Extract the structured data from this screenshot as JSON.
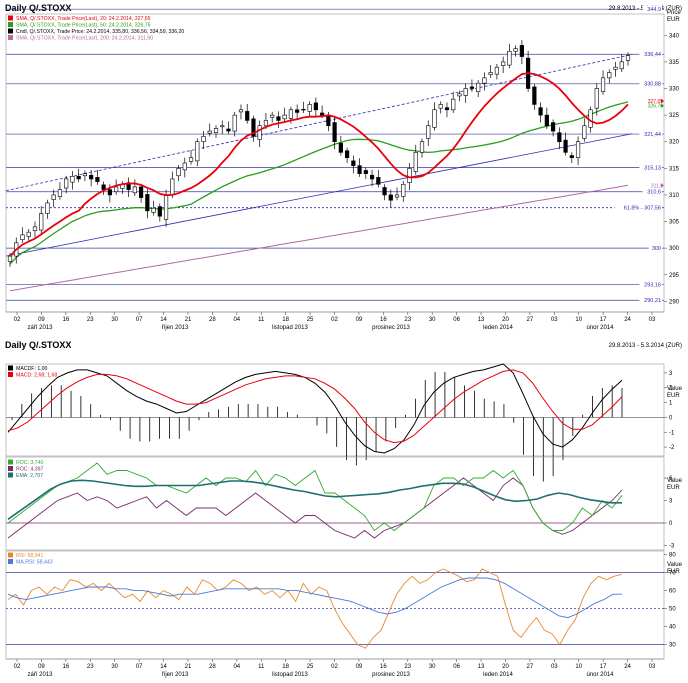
{
  "header": {
    "title": "Daily Q/.STOXX",
    "date_range": "29.8.2013 - 5.3.2014 (ZUR)",
    "title2": "Daily Q/.STOXX",
    "date_range2": "29.8.2013 - 5.3.2014 (ZUR)"
  },
  "colors": {
    "price": "#000000",
    "sma20": "#e8000b",
    "sma50": "#2a9d1a",
    "sma200": "#b36aa0",
    "channel": "#2b2bb0",
    "macd": "#000000",
    "macd_signal": "#e8000b",
    "roc1": "#33aa33",
    "roc2": "#7a2a6a",
    "ema": "#1f6f6f",
    "rsi": "#e88a2a",
    "ma_rsi": "#4a7ad8"
  },
  "x_axis": {
    "day_labels": [
      "02",
      "09",
      "16",
      "23",
      "30",
      "07",
      "14",
      "21",
      "28",
      "04",
      "11",
      "18",
      "25",
      "02",
      "09",
      "16",
      "23",
      "30",
      "06",
      "13",
      "20",
      "27",
      "03",
      "10",
      "17",
      "24",
      "03"
    ],
    "month_labels": [
      "září 2013",
      "říjen 2013",
      "listopad 2013",
      "prosinec 2013",
      "leden 2014",
      "únor 2014"
    ]
  },
  "chart_data": [
    {
      "type": "line",
      "title": "Daily Q/.STOXX",
      "unit_label": "Price",
      "currency_label": "EUR",
      "ylim": [
        288,
        344
      ],
      "yticks": [
        290,
        295,
        300,
        305,
        310,
        315,
        320,
        325,
        330,
        335,
        340
      ],
      "legend": [
        {
          "text": "SMA, Q/.STOXX, Trade Price(Last), 20",
          "value": "24.2.2014, 327,65"
        },
        {
          "text": "SMA, Q/.STOXX, Trade Price(Last), 50",
          "value": "24.2.2014, 326,76"
        },
        {
          "text": "Cndl, Q/.STOXX, Trade Price",
          "value": "24.2.2014, 335,80, 336,56, 334,59, 336,20"
        },
        {
          "text": "SMA, Q/.STOXX, Trade Price(Last), 200",
          "value": "24.2.2014, 311,80"
        }
      ],
      "levels": [
        {
          "value": 344.9,
          "label": "344,9"
        },
        {
          "value": 336.44,
          "label": "336,44"
        },
        {
          "value": 330.88,
          "label": "330,88"
        },
        {
          "value": 321.44,
          "label": "321,44"
        },
        {
          "value": 315.13,
          "label": "315,13"
        },
        {
          "value": 310.6,
          "label": "310,6"
        },
        {
          "value": 307.6,
          "label": "61.8% - 307,56"
        },
        {
          "value": 300,
          "label": "300"
        },
        {
          "value": 293.16,
          "label": "293,16"
        },
        {
          "value": 290.21,
          "label": "290,21"
        }
      ],
      "sma_labels": {
        "sma20": "327,65",
        "sma50": "326,76",
        "sma200": "311,8"
      },
      "close": [
        298.5,
        301,
        302.5,
        303,
        304,
        306.5,
        308.5,
        310,
        311,
        313,
        313.5,
        313,
        314,
        313,
        312.5,
        311,
        310,
        311.5,
        312,
        311,
        311.5,
        309.5,
        307,
        307.5,
        306,
        310,
        313,
        315,
        316,
        317,
        320,
        321,
        322,
        322.5,
        323,
        322,
        325,
        326,
        324,
        321,
        323,
        324,
        325,
        324,
        325,
        326,
        325.5,
        326,
        327,
        326,
        325,
        323,
        320,
        318,
        317,
        315.5,
        314,
        314,
        313,
        312,
        310,
        309,
        310,
        312,
        315,
        318,
        320,
        323,
        326,
        327,
        326,
        328,
        329,
        330,
        330,
        331,
        332,
        333,
        334,
        335,
        337,
        337.5,
        336,
        330,
        327,
        325,
        323,
        322,
        320,
        318,
        317,
        320,
        323,
        326,
        330,
        332,
        333,
        334,
        335,
        336.2
      ]
    },
    {
      "type": "line",
      "title": "MACD",
      "unit_label": "Value",
      "currency_label": "EUR",
      "ylim": [
        -2.6,
        3.6
      ],
      "yticks": [
        -2,
        -1,
        0,
        1,
        2,
        3
      ],
      "legend": [
        {
          "text": "MACDF",
          "value": "1,00"
        },
        {
          "text": "MACD",
          "value": "2,68; 1,68"
        }
      ],
      "series": [
        {
          "name": "MACDF",
          "values": [
            -1,
            -0.2,
            0.6,
            1.4,
            2.1,
            2.7,
            3,
            3.2,
            3.2,
            3,
            2.8,
            2.3,
            1.8,
            1.4,
            1.1,
            0.9,
            0.6,
            0.3,
            0.4,
            0.8,
            1.2,
            1.6,
            2,
            2.4,
            2.7,
            2.9,
            3,
            3.1,
            3,
            2.9,
            2.7,
            2.3,
            1.7,
            0.8,
            -0.3,
            -1.2,
            -1.9,
            -2.3,
            -2.4,
            -2.1,
            -1.5,
            -0.5,
            0.8,
            1.7,
            2.3,
            2.7,
            2.9,
            3.1,
            3.2,
            3.4,
            3.6,
            3,
            1.6,
            0.1,
            -1.1,
            -1.8,
            -2,
            -1.5,
            -0.7,
            0.3,
            1.2,
            1.9,
            2.5
          ]
        },
        {
          "name": "MACD",
          "values": [
            -0.9,
            -0.7,
            -0.3,
            0.3,
            0.9,
            1.5,
            2,
            2.4,
            2.7,
            2.9,
            2.9,
            2.8,
            2.6,
            2.3,
            2,
            1.7,
            1.4,
            1.1,
            0.9,
            0.9,
            1,
            1.3,
            1.6,
            1.9,
            2.2,
            2.4,
            2.6,
            2.7,
            2.8,
            2.8,
            2.7,
            2.6,
            2.3,
            1.9,
            1.3,
            0.6,
            -0.3,
            -1,
            -1.5,
            -1.7,
            -1.6,
            -1.2,
            -0.6,
            0,
            0.6,
            1.2,
            1.7,
            2.1,
            2.5,
            2.8,
            3.1,
            3.2,
            3,
            2.3,
            1.3,
            0.4,
            -0.4,
            -0.8,
            -0.8,
            -0.5,
            0.1,
            0.7,
            1.4
          ]
        }
      ]
    },
    {
      "type": "line",
      "title": "ROC",
      "unit_label": "Value",
      "currency_label": "EUR",
      "ylim": [
        -3.6,
        8.8
      ],
      "yticks": [
        -3,
        0,
        3,
        6
      ],
      "legend": [
        {
          "text": "ROC",
          "value": "3,740"
        },
        {
          "text": "ROC",
          "value": "4,397"
        },
        {
          "text": "EMA",
          "value": "2,707"
        }
      ],
      "series": [
        {
          "name": "ROC",
          "values": [
            0,
            1,
            2,
            3,
            4,
            5,
            5.5,
            6,
            7,
            8,
            6.5,
            7,
            7,
            6.5,
            6,
            5,
            5,
            4.5,
            4,
            5,
            6,
            5,
            6,
            6,
            5.5,
            7,
            5,
            6.5,
            6,
            5,
            6,
            7,
            4,
            4,
            3,
            2,
            1,
            -1,
            0,
            -1,
            0,
            1,
            2,
            5,
            6,
            6,
            5,
            6,
            6,
            7,
            6,
            7,
            5,
            2,
            0,
            -1,
            -1,
            0,
            2,
            1,
            3,
            2,
            3.7
          ]
        },
        {
          "name": "ROC",
          "values": [
            -2,
            -1,
            0,
            1,
            2,
            3,
            3.5,
            4,
            3,
            3.5,
            3,
            2,
            2.5,
            3,
            3.5,
            2,
            3,
            2,
            1,
            2,
            2,
            2,
            1,
            2,
            3,
            4,
            3,
            2,
            1,
            0,
            1,
            1,
            0,
            -1,
            -1.5,
            -2,
            -1,
            -2,
            -1,
            -0.5,
            0,
            1,
            2,
            3,
            4,
            5,
            6,
            5,
            4,
            3,
            5,
            6,
            5,
            2,
            0,
            -1,
            -1.5,
            -1,
            0,
            1,
            2,
            3,
            4.4
          ]
        },
        {
          "name": "EMA",
          "values": [
            0.5,
            1.5,
            2.5,
            3.5,
            4.5,
            5.2,
            5.6,
            5.7,
            5.6,
            5.4,
            5.2,
            5,
            4.9,
            4.9,
            5,
            5,
            5,
            5,
            5,
            5.2,
            5.4,
            5.6,
            5.6,
            5.5,
            5.3,
            5,
            4.7,
            4.4,
            4.2,
            3.9,
            3.6,
            3.5,
            3.6,
            3.7,
            3.8,
            3.9,
            4.1,
            4.4,
            4.6,
            4.9,
            5.1,
            5.3,
            5.3,
            5.2,
            4.8,
            4.2,
            3.6,
            3.1,
            2.9,
            3,
            3.2,
            3.7,
            4,
            3.8,
            3.4,
            3.1,
            2.9,
            2.7,
            2.7
          ]
        }
      ]
    },
    {
      "type": "line",
      "title": "RSI",
      "unit_label": "Value",
      "currency_label": "EUR",
      "ylim": [
        22,
        82
      ],
      "yticks": [
        30,
        40,
        50,
        60,
        70,
        80
      ],
      "legend": [
        {
          "text": "RSI",
          "value": "68,941"
        },
        {
          "text": "MA.RSI",
          "value": "58,443"
        }
      ],
      "series": [
        {
          "name": "RSI",
          "values": [
            55,
            58,
            52,
            60,
            62,
            58,
            62,
            60,
            66,
            65,
            62,
            64,
            60,
            64,
            60,
            56,
            58,
            54,
            60,
            56,
            60,
            58,
            55,
            62,
            58,
            66,
            64,
            60,
            62,
            66,
            64,
            60,
            62,
            58,
            60,
            56,
            60,
            54,
            64,
            58,
            62,
            60,
            50,
            42,
            36,
            30,
            28,
            34,
            38,
            48,
            58,
            64,
            68,
            64,
            66,
            70,
            72,
            70,
            68,
            65,
            66,
            72,
            70,
            68,
            52,
            38,
            34,
            40,
            45,
            38,
            36,
            30,
            38,
            44,
            56,
            64,
            68,
            66,
            68,
            69
          ]
        },
        {
          "name": "MA.RSI",
          "values": [
            58,
            56,
            55,
            56,
            57,
            58,
            59,
            60,
            61,
            62,
            62,
            62,
            61,
            61,
            60,
            60,
            59,
            58,
            57,
            58,
            58,
            58,
            59,
            60,
            61,
            61,
            61,
            61,
            61,
            61,
            61,
            60,
            60,
            59,
            58,
            57,
            56,
            55,
            54,
            52,
            50,
            48,
            47,
            48,
            50,
            53,
            56,
            59,
            62,
            64,
            66,
            67,
            67,
            67,
            66,
            64,
            61,
            58,
            55,
            52,
            49,
            46,
            45,
            47,
            50,
            53,
            55,
            58,
            58
          ]
        }
      ]
    }
  ]
}
